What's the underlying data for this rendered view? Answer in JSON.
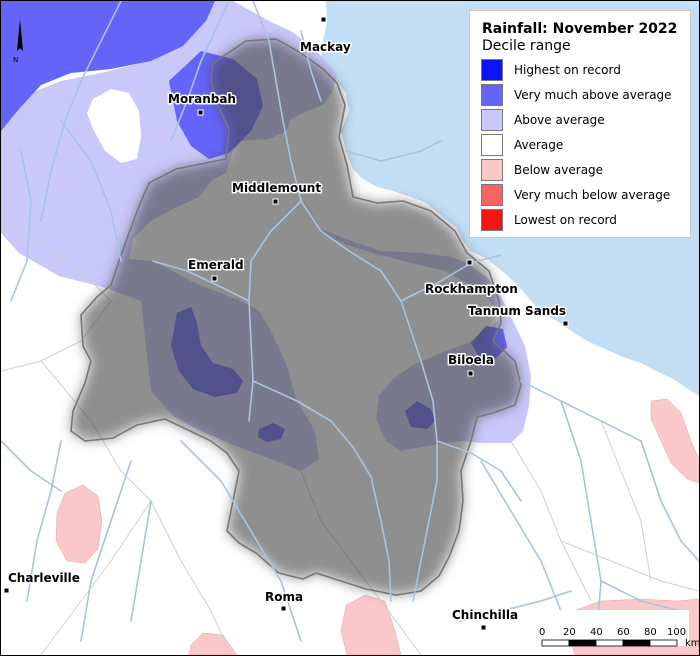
{
  "legend": {
    "title": "Rainfall: November 2022",
    "subtitle": "Decile range",
    "items": [
      {
        "label": "Highest on record",
        "color": "#0a14f5"
      },
      {
        "label": "Very much above average",
        "color": "#6464f8"
      },
      {
        "label": "Above average",
        "color": "#c8c8fa"
      },
      {
        "label": "Average",
        "color": "#ffffff"
      },
      {
        "label": "Below average",
        "color": "#fac8c8"
      },
      {
        "label": "Very much below average",
        "color": "#f86464"
      },
      {
        "label": "Lowest on record",
        "color": "#f51414"
      }
    ]
  },
  "towns": [
    {
      "name": "Mackay"
    },
    {
      "name": "Moranbah"
    },
    {
      "name": "Middlemount"
    },
    {
      "name": "Emerald"
    },
    {
      "name": "Rockhampton"
    },
    {
      "name": "Tannum Sands"
    },
    {
      "name": "Biloela"
    },
    {
      "name": "Charleville"
    },
    {
      "name": "Roma"
    },
    {
      "name": "Chinchilla"
    }
  ],
  "north_arrow": {
    "label": "N"
  },
  "scale_bar": {
    "ticks": [
      "0",
      "20",
      "40",
      "60",
      "80",
      "100"
    ],
    "unit": "km"
  },
  "colors": {
    "sea": "#c2def5",
    "river": "#a8c4e0",
    "boundary": "#d0d0d0",
    "basin_outline": "#777777"
  }
}
